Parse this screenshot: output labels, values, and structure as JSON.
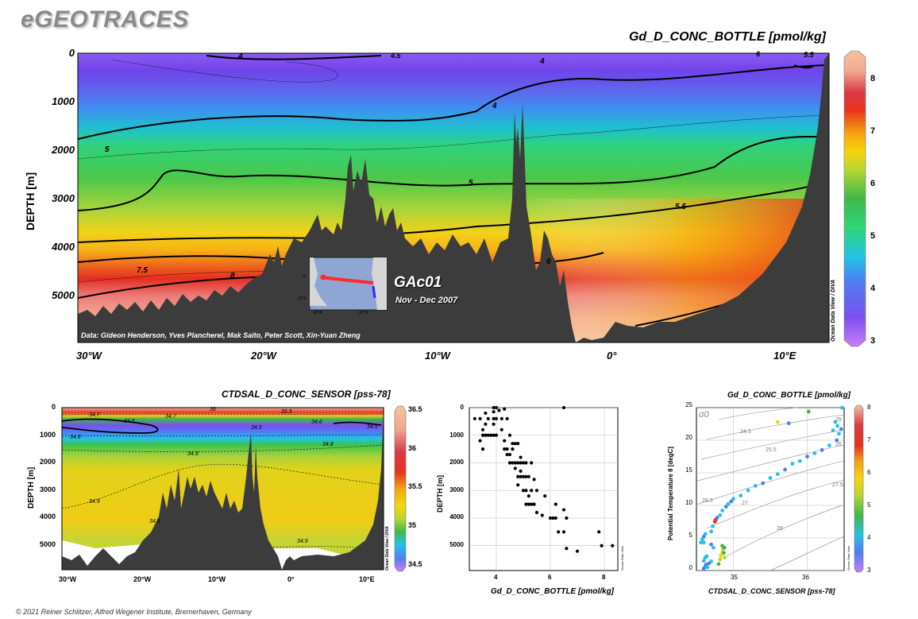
{
  "header": {
    "brand": "eGEOTRACES",
    "footer": "© 2021 Reiner Schlitzer, Alfred Wegener Institute, Bremerhaven, Germany"
  },
  "colors": {
    "scale": [
      "#c87ef6",
      "#7b4ff0",
      "#4d7ef2",
      "#23c2e8",
      "#2fd67a",
      "#3fb84a",
      "#b8d630",
      "#f6d40f",
      "#f6a311",
      "#e8321d",
      "#d93a47",
      "#f0a78f",
      "#f6c2a1"
    ],
    "bathymetry": "#3c3c3c",
    "track": "#ff2a2a"
  },
  "chart_data": [
    {
      "id": "main-section",
      "type": "heatmap",
      "title": "Gd_D_CONC_BOTTLE [pmol/kg]",
      "xlabel": "",
      "ylabel": "DEPTH [m]",
      "x_ticks": [
        "30°W",
        "20°W",
        "10°W",
        "0°",
        "10°E"
      ],
      "x_tick_values": [
        -30,
        -20,
        -10,
        0,
        10
      ],
      "xlim": [
        -30.5,
        12
      ],
      "y_ticks": [
        "0",
        "1000",
        "2000",
        "3000",
        "4000",
        "5000"
      ],
      "y_tick_values": [
        0,
        1000,
        2000,
        3000,
        4000,
        5000
      ],
      "ylim": [
        0,
        5900
      ],
      "colorbar": {
        "min": 3,
        "max": 8.5,
        "ticks": [
          "3",
          "4",
          "5",
          "6",
          "7",
          "8"
        ],
        "label": "Ocean Data View / DIVA"
      },
      "contour_labels": [
        "4",
        "4",
        "4",
        "4.5",
        "5",
        "5",
        "5.5",
        "5.5",
        "6",
        "7.5",
        "8"
      ],
      "inset": {
        "name": "GAc01",
        "period": "Nov - Dec 2007",
        "lon_labels": [
          "40°W",
          "20°W"
        ],
        "lat_labels": [
          "20°S",
          "0°"
        ]
      },
      "data_credit": "Data: Gideon Henderson, Yves Plancherel, Mak Saito, Peter Scott, Xin-Yuan Zheng"
    },
    {
      "id": "salinity-section",
      "type": "heatmap",
      "title": "CTDSAL_D_CONC_SENSOR [pss-78]",
      "ylabel": "DEPTH [m]",
      "x_ticks": [
        "30°W",
        "20°W",
        "10°W",
        "0°",
        "10°E"
      ],
      "x_tick_values": [
        -30,
        -20,
        -10,
        0,
        10
      ],
      "xlim": [
        -30.5,
        12
      ],
      "y_ticks": [
        "0",
        "1000",
        "2000",
        "3000",
        "4000",
        "5000"
      ],
      "y_tick_values": [
        0,
        1000,
        2000,
        3000,
        4000,
        5000
      ],
      "ylim": [
        0,
        5900
      ],
      "colorbar": {
        "min": 34.4,
        "max": 36.5,
        "ticks": [
          "34.5",
          "35",
          "35.5",
          "36",
          "36.5"
        ],
        "label": "Ocean Data View / DIVA"
      },
      "contour_labels": [
        "36",
        "35.5",
        "34.8",
        "34.7",
        "34.6",
        "34.6",
        "34.5",
        "34.5",
        "34.6",
        "34.5",
        "34.6",
        "34.8",
        "34.9",
        "34.9",
        "34.9",
        "34.9"
      ]
    },
    {
      "id": "profile-scatter",
      "type": "scatter",
      "xlabel": "Gd_D_CONC_BOTTLE [pmol/kg]",
      "ylabel": "DEPTH [m]",
      "xlim": [
        3,
        8.5
      ],
      "ylim": [
        0,
        5900
      ],
      "x_ticks": [
        "4",
        "6",
        "8"
      ],
      "x_tick_values": [
        4,
        6,
        8
      ],
      "y_ticks": [
        "0",
        "1000",
        "2000",
        "3000",
        "4000",
        "5000"
      ],
      "y_tick_values": [
        0,
        1000,
        2000,
        3000,
        4000,
        5000
      ],
      "side_label": "Ocean Data View",
      "points": [
        [
          3.9,
          0
        ],
        [
          4.0,
          0
        ],
        [
          6.5,
          0
        ],
        [
          3.6,
          200
        ],
        [
          3.9,
          150
        ],
        [
          4.1,
          100
        ],
        [
          4.3,
          50
        ],
        [
          3.2,
          400
        ],
        [
          3.4,
          400
        ],
        [
          3.7,
          400
        ],
        [
          3.9,
          400
        ],
        [
          4.0,
          400
        ],
        [
          4.2,
          400
        ],
        [
          4.4,
          400
        ],
        [
          3.6,
          600
        ],
        [
          3.9,
          600
        ],
        [
          3.5,
          800
        ],
        [
          4.2,
          800
        ],
        [
          3.5,
          1000
        ],
        [
          3.6,
          1000
        ],
        [
          3.7,
          1000
        ],
        [
          3.8,
          1000
        ],
        [
          3.9,
          1000
        ],
        [
          4.0,
          1000
        ],
        [
          4.5,
          1000
        ],
        [
          3.4,
          1200
        ],
        [
          4.3,
          1200
        ],
        [
          4.6,
          1300
        ],
        [
          4.7,
          1300
        ],
        [
          4.8,
          1300
        ],
        [
          3.5,
          1500
        ],
        [
          4.3,
          1500
        ],
        [
          4.4,
          1500
        ],
        [
          4.6,
          1500
        ],
        [
          4.4,
          1700
        ],
        [
          4.5,
          1700
        ],
        [
          4.9,
          1800
        ],
        [
          4.5,
          2000
        ],
        [
          4.6,
          2000
        ],
        [
          4.7,
          2000
        ],
        [
          4.8,
          2000
        ],
        [
          4.9,
          2000
        ],
        [
          5.0,
          2000
        ],
        [
          5.1,
          2000
        ],
        [
          5.3,
          2000
        ],
        [
          4.7,
          2200
        ],
        [
          4.9,
          2300
        ],
        [
          4.8,
          2500
        ],
        [
          4.9,
          2500
        ],
        [
          5.0,
          2500
        ],
        [
          5.1,
          2500
        ],
        [
          5.2,
          2500
        ],
        [
          5.4,
          2600
        ],
        [
          4.8,
          2800
        ],
        [
          5.0,
          3000
        ],
        [
          5.1,
          3000
        ],
        [
          5.3,
          3000
        ],
        [
          5.5,
          3000
        ],
        [
          5.2,
          3200
        ],
        [
          5.8,
          3200
        ],
        [
          5.1,
          3500
        ],
        [
          5.2,
          3500
        ],
        [
          5.3,
          3500
        ],
        [
          5.4,
          3500
        ],
        [
          6.2,
          3500
        ],
        [
          6.5,
          3700
        ],
        [
          5.5,
          3800
        ],
        [
          5.7,
          3900
        ],
        [
          6.0,
          4000
        ],
        [
          6.1,
          4000
        ],
        [
          6.2,
          4000
        ],
        [
          6.6,
          4000
        ],
        [
          6.3,
          4500
        ],
        [
          6.5,
          4500
        ],
        [
          7.8,
          4500
        ],
        [
          7.9,
          5000
        ],
        [
          8.3,
          5000
        ],
        [
          6.6,
          5100
        ],
        [
          7.0,
          5200
        ]
      ]
    },
    {
      "id": "ts-diagram",
      "type": "scatter",
      "title": "Gd_D_CONC_BOTTLE [pmol/kg]",
      "xlabel": "CTDSAL_D_CONC_SENSOR [pss-78]",
      "ylabel": "Potential Temperature θ [degC]",
      "xlim": [
        34.5,
        36.5
      ],
      "ylim": [
        0,
        25
      ],
      "x_ticks": [
        "35",
        "36"
      ],
      "x_tick_values": [
        35,
        36
      ],
      "y_ticks": [
        "0",
        "5",
        "10",
        "15",
        "20",
        "25"
      ],
      "y_tick_values": [
        0,
        5,
        10,
        15,
        20,
        25
      ],
      "sigma_label": "σ0",
      "isopycnal_labels": [
        "24.5",
        "25",
        "25.5",
        "26",
        "26.5",
        "27",
        "27.5",
        "28"
      ],
      "colorbar": {
        "min": 3,
        "max": 8,
        "ticks": [
          "3",
          "4",
          "5",
          "6",
          "7",
          "8"
        ],
        "label": "Ocean Data View"
      },
      "points": [
        [
          34.6,
          0.3,
          4.0
        ],
        [
          34.62,
          0.6,
          4.0
        ],
        [
          34.63,
          0.9,
          3.9
        ],
        [
          34.65,
          0.5,
          4.2
        ],
        [
          34.6,
          1.5,
          4.3
        ],
        [
          34.62,
          2.0,
          4.5
        ],
        [
          34.64,
          2.2,
          4.3
        ],
        [
          34.67,
          1.1,
          4.0
        ],
        [
          34.7,
          1.4,
          4.1
        ],
        [
          34.8,
          1.0,
          5.2
        ],
        [
          34.82,
          1.7,
          5.5
        ],
        [
          34.83,
          2.3,
          5.8
        ],
        [
          34.85,
          2.8,
          6.2
        ],
        [
          34.86,
          3.3,
          5.3
        ],
        [
          34.87,
          2.7,
          4.9
        ],
        [
          34.88,
          3.5,
          4.7
        ],
        [
          34.85,
          3.8,
          5.0
        ],
        [
          34.88,
          2.0,
          5.5
        ],
        [
          34.73,
          3.5,
          4.2
        ],
        [
          34.7,
          4.0,
          4.0
        ],
        [
          34.56,
          4.3,
          4.1
        ],
        [
          34.6,
          5.2,
          4.0
        ],
        [
          34.58,
          4.8,
          4.2
        ],
        [
          34.62,
          5.6,
          4.1
        ],
        [
          34.7,
          6.0,
          4.3
        ],
        [
          34.72,
          6.8,
          4.2
        ],
        [
          34.75,
          7.5,
          6.8
        ],
        [
          34.76,
          7.8,
          7.2
        ],
        [
          34.78,
          8.1,
          4.0
        ],
        [
          34.82,
          8.5,
          4.2
        ],
        [
          34.85,
          9.2,
          4.2
        ],
        [
          34.9,
          9.8,
          3.9
        ],
        [
          34.93,
          10.2,
          4.1
        ],
        [
          34.97,
          10.6,
          4.0
        ],
        [
          35.0,
          11.0,
          4.3
        ],
        [
          35.1,
          11.5,
          4.1
        ],
        [
          35.2,
          12.3,
          4.2
        ],
        [
          35.3,
          13.0,
          4.1
        ],
        [
          35.4,
          13.4,
          4.0
        ],
        [
          35.5,
          14.2,
          4.2
        ],
        [
          35.6,
          14.8,
          4.3
        ],
        [
          35.7,
          15.5,
          4.0
        ],
        [
          35.8,
          16.4,
          4.1
        ],
        [
          35.9,
          16.8,
          4.2
        ],
        [
          36.0,
          17.5,
          4.0
        ],
        [
          36.1,
          18.0,
          4.1
        ],
        [
          36.2,
          18.5,
          4.0
        ],
        [
          36.3,
          19.2,
          4.1
        ],
        [
          36.4,
          20.0,
          4.0
        ],
        [
          36.43,
          21.0,
          4.2
        ],
        [
          36.41,
          22.2,
          4.3
        ],
        [
          36.38,
          22.8,
          4.1
        ],
        [
          36.35,
          21.5,
          4.4
        ],
        [
          35.6,
          22.8,
          6.0
        ],
        [
          35.75,
          22.6,
          4.0
        ],
        [
          36.02,
          24.4,
          5.0
        ],
        [
          36.47,
          25.0,
          4.1
        ],
        [
          34.6,
          4.3,
          4.1
        ],
        [
          36.46,
          21.7,
          4.0
        ]
      ]
    }
  ]
}
